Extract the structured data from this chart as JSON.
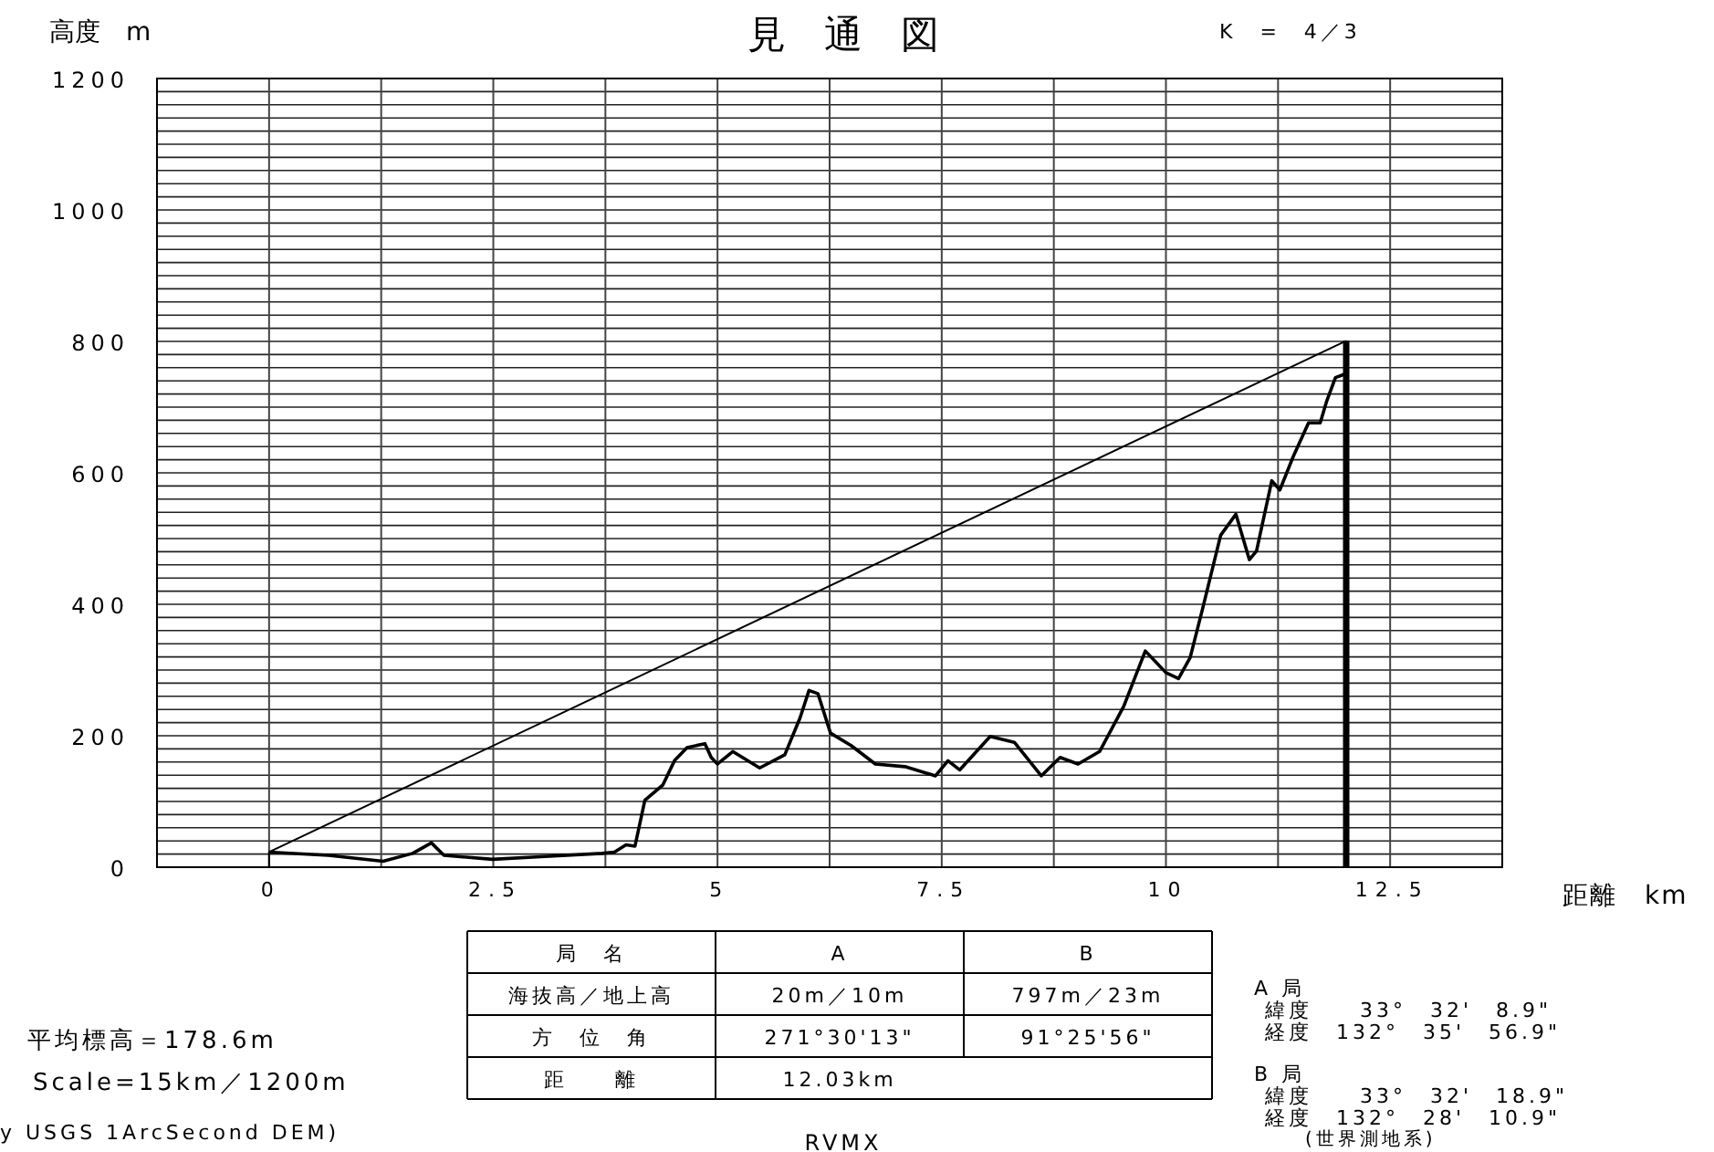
{
  "chart_data": {
    "type": "line",
    "title": "見　通　図",
    "ylabel": "高度　m",
    "xlabel": "距離　km",
    "xlim": [
      -1.25,
      13.75
    ],
    "ylim": [
      0,
      1200
    ],
    "xticks": [
      {
        "value": -1.25,
        "label": null
      },
      0,
      {
        "value": 1.25,
        "label": null
      },
      2.5,
      {
        "value": 3.75,
        "label": null
      },
      5,
      {
        "value": 6.25,
        "label": null
      },
      7.5,
      {
        "value": 8.75,
        "label": null
      },
      10,
      {
        "value": 11.25,
        "label": null
      },
      12.5,
      {
        "value": 13.75,
        "label": null
      }
    ],
    "yticks": [
      0,
      {
        "value": 20,
        "label": null
      },
      {
        "value": 40,
        "label": null
      },
      {
        "value": 60,
        "label": null
      },
      {
        "value": 80,
        "label": null
      },
      {
        "value": 100,
        "label": null
      },
      {
        "value": 120,
        "label": null
      },
      {
        "value": 140,
        "label": null
      },
      {
        "value": 160,
        "label": null
      },
      {
        "value": 180,
        "label": null
      },
      200,
      {
        "value": 220,
        "label": null
      },
      {
        "value": 240,
        "label": null
      },
      {
        "value": 260,
        "label": null
      },
      {
        "value": 280,
        "label": null
      },
      {
        "value": 300,
        "label": null
      },
      {
        "value": 320,
        "label": null
      },
      {
        "value": 340,
        "label": null
      },
      {
        "value": 360,
        "label": null
      },
      {
        "value": 380,
        "label": null
      },
      400,
      {
        "value": 420,
        "label": null
      },
      {
        "value": 440,
        "label": null
      },
      {
        "value": 460,
        "label": null
      },
      {
        "value": 480,
        "label": null
      },
      {
        "value": 500,
        "label": null
      },
      {
        "value": 520,
        "label": null
      },
      {
        "value": 540,
        "label": null
      },
      {
        "value": 560,
        "label": null
      },
      {
        "value": 580,
        "label": null
      },
      600,
      {
        "value": 620,
        "label": null
      },
      {
        "value": 640,
        "label": null
      },
      {
        "value": 660,
        "label": null
      },
      {
        "value": 680,
        "label": null
      },
      {
        "value": 700,
        "label": null
      },
      {
        "value": 720,
        "label": null
      },
      {
        "value": 740,
        "label": null
      },
      {
        "value": 760,
        "label": null
      },
      {
        "value": 780,
        "label": null
      },
      800,
      {
        "value": 820,
        "label": null
      },
      {
        "value": 840,
        "label": null
      },
      {
        "value": 860,
        "label": null
      },
      {
        "value": 880,
        "label": null
      },
      {
        "value": 900,
        "label": null
      },
      {
        "value": 920,
        "label": null
      },
      {
        "value": 940,
        "label": null
      },
      {
        "value": 960,
        "label": null
      },
      {
        "value": 980,
        "label": null
      },
      1000,
      {
        "value": 1020,
        "label": null
      },
      {
        "value": 1040,
        "label": null
      },
      {
        "value": 1060,
        "label": null
      },
      {
        "value": 1080,
        "label": null
      },
      {
        "value": 1100,
        "label": null
      },
      {
        "value": 1120,
        "label": null
      },
      {
        "value": 1140,
        "label": null
      },
      {
        "value": 1160,
        "label": null
      },
      {
        "value": 1180,
        "label": null
      },
      1200
    ],
    "grid": true,
    "series": [
      {
        "color": "#000000",
        "x": [
          0,
          0.66,
          1.27,
          1.6,
          1.81,
          1.95,
          2.49,
          3.03,
          3.71,
          3.85,
          3.98,
          4.08,
          4.19,
          4.39,
          4.52,
          4.66,
          4.86,
          4.93,
          5.0,
          5.17,
          5.47,
          5.75,
          5.92,
          6.02,
          6.12,
          6.26,
          6.49,
          6.76,
          7.09,
          7.43,
          7.57,
          7.7,
          8.04,
          8.31,
          8.61,
          8.82,
          9.02,
          9.26,
          9.53,
          9.77,
          10.0,
          10.14,
          10.27,
          10.41,
          10.61,
          10.78,
          10.93,
          11.01,
          11.18,
          11.27,
          11.42,
          11.59,
          11.72,
          11.79,
          11.89,
          11.99
        ],
        "values": [
          23,
          18,
          9,
          21,
          37,
          18,
          12,
          16,
          21,
          23,
          34,
          32,
          102,
          125,
          162,
          182,
          188,
          167,
          157,
          176,
          151,
          171,
          227,
          269,
          264,
          204,
          185,
          157,
          153,
          139,
          162,
          148,
          199,
          190,
          139,
          167,
          157,
          176,
          245,
          329,
          296,
          287,
          319,
          394,
          505,
          537,
          468,
          481,
          588,
          574,
          625,
          676,
          676,
          708,
          745,
          750
        ]
      },
      {
        "color": "#000000",
        "x": [
          0,
          0,
          12.01
        ],
        "values": [
          0,
          23,
          801
        ]
      },
      {
        "color": "#000000",
        "x": [
          12.01,
          12.01
        ],
        "values": [
          0,
          801
        ]
      }
    ],
    "marker": "none",
    "line_style": "solid",
    "annotations": [
      "K　=　4／3",
      "局　名",
      "A",
      "B",
      "海抜高／地上高",
      "20m／10m",
      "797m／23m",
      "方　位　角",
      "271°30'13\"",
      "91°25'56\"",
      "距　　離",
      "12.03km",
      "平均標高＝178.6m",
      "Scale=15km／1200m",
      "y USGS 1ArcSecond DEM)",
      "RVMX",
      "A 局",
      "緯度　　33°　32'　8.9\"",
      "経度　132°　35'　56.9\"",
      "B 局",
      "緯度　　33°　32'　18.9\"",
      "経度　132°　28'　10.9\"",
      "(世界測地系)"
    ]
  }
}
